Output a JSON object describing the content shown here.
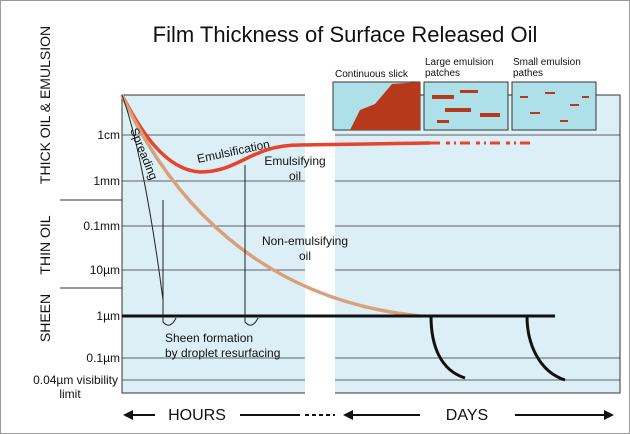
{
  "header": {
    "title": "Film Thickness of Surface Released Oil"
  },
  "zones": [
    {
      "label": "THICK OIL & EMULSION"
    },
    {
      "label": "THIN OIL"
    },
    {
      "label": "SHEEN"
    }
  ],
  "levels": [
    {
      "label": "1cm"
    },
    {
      "label": "1mm"
    },
    {
      "label": "0.1mm"
    },
    {
      "label": "10µm"
    },
    {
      "label": "1µm"
    },
    {
      "label": "0.1µm"
    },
    {
      "label": "0.04µm visibility",
      "label2": "limit"
    }
  ],
  "insets": [
    {
      "lines": [
        "Continuous slick"
      ]
    },
    {
      "lines": [
        "Large emulsion",
        "patches"
      ]
    },
    {
      "lines": [
        "Small emulsion",
        "pathes"
      ]
    }
  ],
  "annotations": {
    "spreading": "Spreading",
    "emulsification": "Emulsification",
    "emulsifying": [
      "Emulsifying",
      "oil"
    ],
    "non_emulsifying": [
      "Non-emulsifying",
      "oil"
    ],
    "sheen": [
      "Sheen formation",
      "by droplet resurfacing"
    ]
  },
  "time": {
    "hours": "HOURS",
    "days": "DAYS"
  }
}
